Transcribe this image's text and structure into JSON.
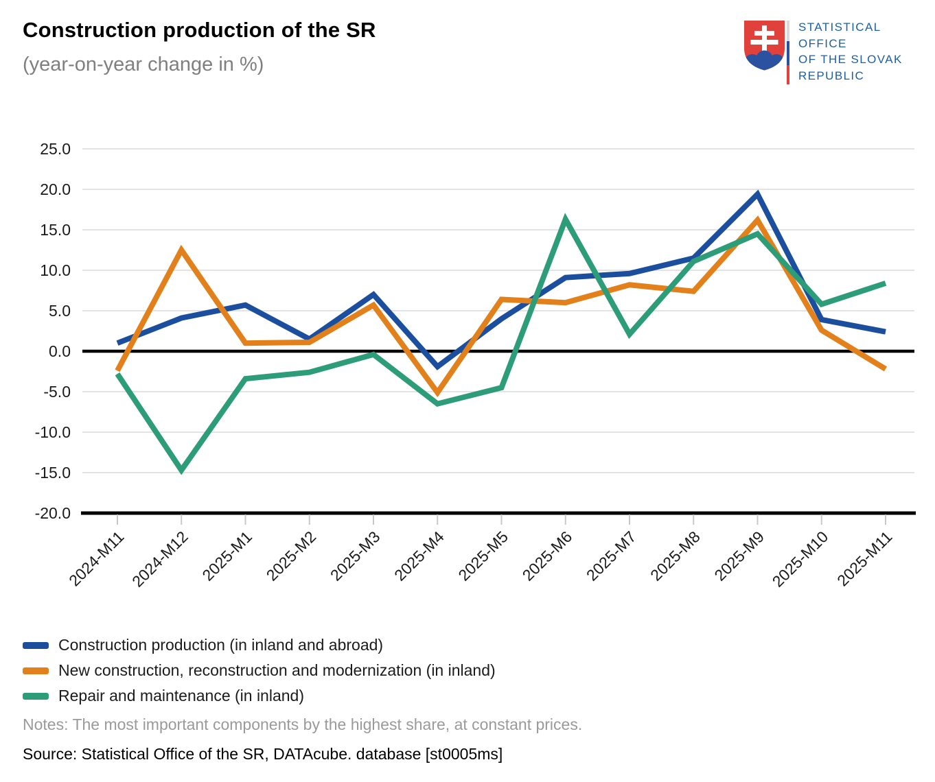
{
  "header": {
    "title": "Construction production of the SR",
    "subtitle": "(year-on-year change in %)"
  },
  "logo": {
    "lines": [
      "STATISTICAL",
      "OFFICE",
      "OF THE SLOVAK",
      "REPUBLIC"
    ],
    "shield_red": "#e0413b",
    "shield_blue": "#2a52a0",
    "text_blue": "#1b5fa5"
  },
  "chart_data": {
    "type": "line",
    "title": "Construction production of the SR",
    "subtitle": "(year-on-year change in %)",
    "categories": [
      "2024-M11",
      "2024-M12",
      "2025-M1",
      "2025-M2",
      "2025-M3",
      "2025-M4",
      "2025-M5",
      "2025-M6",
      "2025-M7",
      "2025-M8",
      "2025-M9",
      "2025-M10",
      "2025-M11"
    ],
    "series": [
      {
        "name": "Construction production (in inland and abroad)",
        "color": "#1b4f9d",
        "values": [
          1.0,
          4.1,
          5.7,
          1.5,
          7.0,
          -1.9,
          4.0,
          9.1,
          9.6,
          11.5,
          19.4,
          3.9,
          2.4
        ]
      },
      {
        "name": "New construction, reconstruction and modernization (in inland)",
        "color": "#e2811b",
        "values": [
          -2.4,
          12.5,
          1.0,
          1.1,
          5.7,
          -5.1,
          6.4,
          6.0,
          8.2,
          7.4,
          16.2,
          2.6,
          -2.2
        ]
      },
      {
        "name": "Repair and maintenance (in inland)",
        "color": "#2d9c78",
        "values": [
          -2.8,
          -14.7,
          -3.4,
          -2.6,
          -0.4,
          -6.5,
          -4.5,
          16.3,
          2.1,
          11.1,
          14.5,
          5.8,
          8.4
        ]
      }
    ],
    "ylim": [
      -20,
      25
    ],
    "yticks": {
      "values": [
        25,
        20,
        15,
        10,
        5,
        0,
        -5,
        -10,
        -15,
        -20
      ],
      "labels": [
        "25.0",
        "20.0",
        "15.0",
        "10.0",
        "5.0",
        "0.0",
        "-5.0",
        "-10.0",
        "-15.0",
        "-20.0"
      ]
    },
    "grid": "horizontal",
    "gridline_color": "#e3e3e3",
    "axis_line_color": "#000000",
    "tick_color": "#c8c8c8",
    "label_color": "#1a1a1a",
    "legend_position": "bottom-left",
    "zero_line": true
  },
  "notes": "Notes: The most important components by the highest share, at constant prices.",
  "source": "Source: Statistical Office of the SR, DATAcube. database [st0005ms]"
}
